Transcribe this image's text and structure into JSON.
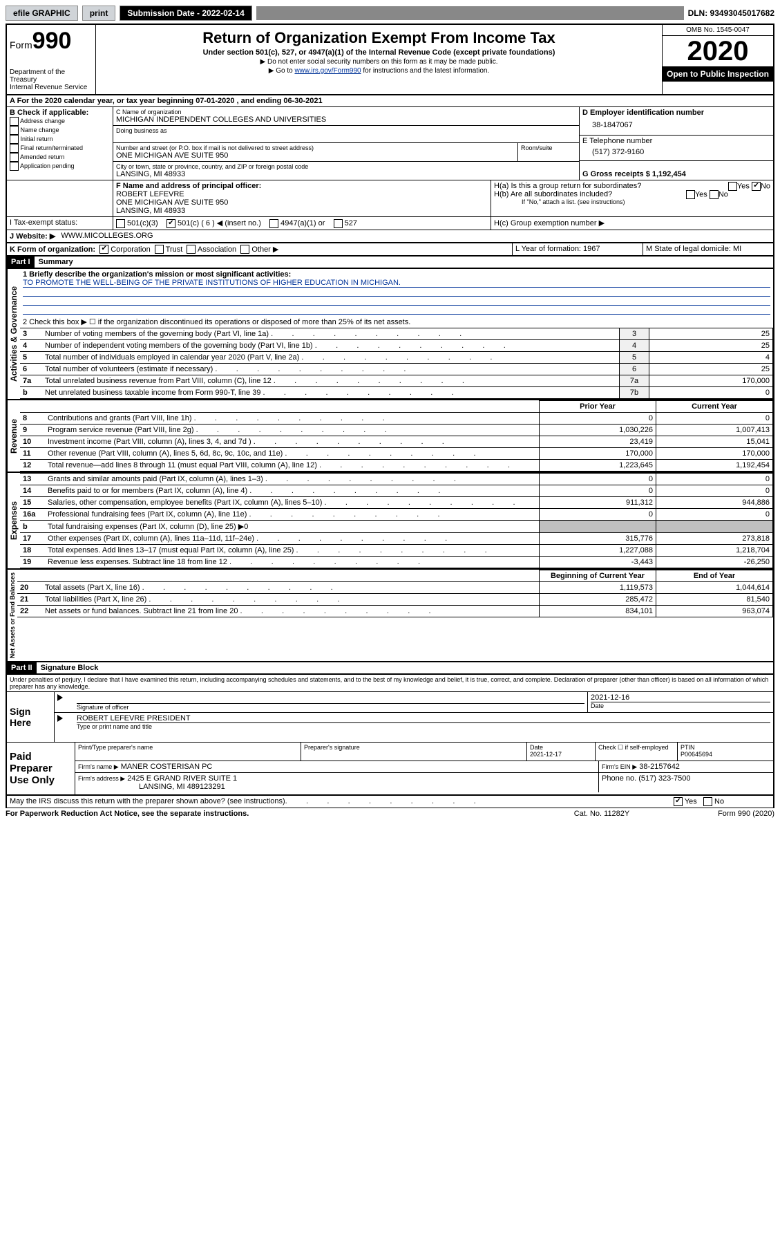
{
  "topbar": {
    "efile": "efile GRAPHIC",
    "print": "print",
    "subdate_label": "Submission Date - 2022-02-14",
    "dln": "DLN: 93493045017682"
  },
  "header": {
    "form_word": "Form",
    "form_num": "990",
    "dept": "Department of the Treasury\nInternal Revenue Service",
    "title": "Return of Organization Exempt From Income Tax",
    "sub": "Under section 501(c), 527, or 4947(a)(1) of the Internal Revenue Code (except private foundations)",
    "note1": "▶ Do not enter social security numbers on this form as it may be made public.",
    "note2_pre": "▶ Go to ",
    "note2_link": "www.irs.gov/Form990",
    "note2_post": " for instructions and the latest information.",
    "omb": "OMB No. 1545-0047",
    "year": "2020",
    "open": "Open to Public Inspection"
  },
  "period": {
    "text": "A For the 2020 calendar year, or tax year beginning 07-01-2020      , and ending 06-30-2021"
  },
  "boxB": {
    "label": "B Check if applicable:",
    "items": [
      "Address change",
      "Name change",
      "Initial return",
      "Final return/terminated",
      "Amended return",
      "Application pending"
    ]
  },
  "boxC": {
    "name_label": "C Name of organization",
    "name": "MICHIGAN INDEPENDENT COLLEGES AND UNIVERSITIES",
    "dba": "Doing business as",
    "street_label": "Number and street (or P.O. box if mail is not delivered to street address)",
    "room": "Room/suite",
    "street": "ONE MICHIGAN AVE SUITE 950",
    "city_label": "City or town, state or province, country, and ZIP or foreign postal code",
    "city": "LANSING, MI  48933"
  },
  "boxD": {
    "label": "D Employer identification number",
    "value": "38-1847067"
  },
  "boxE": {
    "label": "E Telephone number",
    "value": "(517) 372-9160"
  },
  "boxG": {
    "label": "G Gross receipts $ 1,192,454"
  },
  "boxF": {
    "label": "F Name and address of principal officer:",
    "name": "ROBERT LEFEVRE",
    "addr1": "ONE MICHIGAN AVE SUITE 950",
    "addr2": "LANSING, MI  48933"
  },
  "boxH": {
    "a": "H(a)  Is this a group return for subordinates?",
    "b": "H(b)  Are all subordinates included?",
    "bnote": "If \"No,\" attach a list. (see instructions)",
    "c": "H(c)  Group exemption number ▶"
  },
  "boxI": {
    "label": "I   Tax-exempt status:",
    "opts": [
      "501(c)(3)",
      "501(c) ( 6 ) ◀ (insert no.)",
      "4947(a)(1) or",
      "527"
    ]
  },
  "boxJ": {
    "label": "J    Website: ▶",
    "value": "WWW.MICOLLEGES.ORG"
  },
  "boxK": {
    "label": "K Form of organization:",
    "opts": [
      "Corporation",
      "Trust",
      "Association",
      "Other ▶"
    ]
  },
  "boxL": {
    "label": "L Year of formation: 1967"
  },
  "boxM": {
    "label": "M State of legal domicile: MI"
  },
  "part1": {
    "hdr": "Part I",
    "title": "Summary",
    "line1_label": "1  Briefly describe the organization's mission or most significant activities:",
    "line1_value": "TO PROMOTE THE WELL-BEING OF THE PRIVATE INSTITUTIONS OF HIGHER EDUCATION IN MICHIGAN.",
    "line2": "2   Check this box ▶ ☐  if the organization discontinued its operations or disposed of more than 25% of its net assets.",
    "vert_ag": "Activities & Governance",
    "vert_rev": "Revenue",
    "vert_exp": "Expenses",
    "vert_net": "Net Assets or Fund Balances",
    "rows_ag": [
      {
        "n": "3",
        "t": "Number of voting members of the governing body (Part VI, line 1a)",
        "b": "3",
        "v": "25"
      },
      {
        "n": "4",
        "t": "Number of independent voting members of the governing body (Part VI, line 1b)",
        "b": "4",
        "v": "25"
      },
      {
        "n": "5",
        "t": "Total number of individuals employed in calendar year 2020 (Part V, line 2a)",
        "b": "5",
        "v": "4"
      },
      {
        "n": "6",
        "t": "Total number of volunteers (estimate if necessary)",
        "b": "6",
        "v": "25"
      },
      {
        "n": "7a",
        "t": "Total unrelated business revenue from Part VIII, column (C), line 12",
        "b": "7a",
        "v": "170,000"
      },
      {
        "n": "b",
        "t": "Net unrelated business taxable income from Form 990-T, line 39",
        "b": "7b",
        "v": "0"
      }
    ],
    "col_prior": "Prior Year",
    "col_current": "Current Year",
    "rows_rev": [
      {
        "n": "8",
        "t": "Contributions and grants (Part VIII, line 1h)",
        "p": "0",
        "c": "0"
      },
      {
        "n": "9",
        "t": "Program service revenue (Part VIII, line 2g)",
        "p": "1,030,226",
        "c": "1,007,413"
      },
      {
        "n": "10",
        "t": "Investment income (Part VIII, column (A), lines 3, 4, and 7d )",
        "p": "23,419",
        "c": "15,041"
      },
      {
        "n": "11",
        "t": "Other revenue (Part VIII, column (A), lines 5, 6d, 8c, 9c, 10c, and 11e)",
        "p": "170,000",
        "c": "170,000"
      },
      {
        "n": "12",
        "t": "Total revenue—add lines 8 through 11 (must equal Part VIII, column (A), line 12)",
        "p": "1,223,645",
        "c": "1,192,454"
      }
    ],
    "rows_exp": [
      {
        "n": "13",
        "t": "Grants and similar amounts paid (Part IX, column (A), lines 1–3)",
        "p": "0",
        "c": "0"
      },
      {
        "n": "14",
        "t": "Benefits paid to or for members (Part IX, column (A), line 4)",
        "p": "0",
        "c": "0"
      },
      {
        "n": "15",
        "t": "Salaries, other compensation, employee benefits (Part IX, column (A), lines 5–10)",
        "p": "911,312",
        "c": "944,886"
      },
      {
        "n": "16a",
        "t": "Professional fundraising fees (Part IX, column (A), line 11e)",
        "p": "0",
        "c": "0"
      },
      {
        "n": "b",
        "t": "Total fundraising expenses (Part IX, column (D), line 25) ▶0",
        "p": "",
        "c": "",
        "shade": true
      },
      {
        "n": "17",
        "t": "Other expenses (Part IX, column (A), lines 11a–11d, 11f–24e)",
        "p": "315,776",
        "c": "273,818"
      },
      {
        "n": "18",
        "t": "Total expenses. Add lines 13–17 (must equal Part IX, column (A), line 25)",
        "p": "1,227,088",
        "c": "1,218,704"
      },
      {
        "n": "19",
        "t": "Revenue less expenses. Subtract line 18 from line 12",
        "p": "-3,443",
        "c": "-26,250"
      }
    ],
    "col_begin": "Beginning of Current Year",
    "col_end": "End of Year",
    "rows_net": [
      {
        "n": "20",
        "t": "Total assets (Part X, line 16)",
        "p": "1,119,573",
        "c": "1,044,614"
      },
      {
        "n": "21",
        "t": "Total liabilities (Part X, line 26)",
        "p": "285,472",
        "c": "81,540"
      },
      {
        "n": "22",
        "t": "Net assets or fund balances. Subtract line 21 from line 20",
        "p": "834,101",
        "c": "963,074"
      }
    ]
  },
  "part2": {
    "hdr": "Part II",
    "title": "Signature Block",
    "decl": "Under penalties of perjury, I declare that I have examined this return, including accompanying schedules and statements, and to the best of my knowledge and belief, it is true, correct, and complete. Declaration of preparer (other than officer) is based on all information of which preparer has any knowledge.",
    "sign_here": "Sign Here",
    "sig_officer": "Signature of officer",
    "sig_date": "2021-12-16",
    "date_label": "Date",
    "officer_name": "ROBERT LEFEVRE  PRESIDENT",
    "type_label": "Type or print name and title",
    "paid": "Paid Preparer Use Only",
    "prep_name_label": "Print/Type preparer's name",
    "prep_sig_label": "Preparer's signature",
    "prep_date": "2021-12-17",
    "check_self": "Check ☐  if self-employed",
    "ptin_label": "PTIN",
    "ptin": "P00645694",
    "firm_name_label": "Firm's name     ▶",
    "firm_name": "MANER COSTERISAN PC",
    "firm_ein_label": "Firm's EIN ▶",
    "firm_ein": "38-2157642",
    "firm_addr_label": "Firm's address ▶",
    "firm_addr1": "2425 E GRAND RIVER SUITE 1",
    "firm_addr2": "LANSING, MI  489123291",
    "phone_label": "Phone no. (517) 323-7500",
    "discuss": "May the IRS discuss this return with the preparer shown above? (see instructions)",
    "paperwork": "For Paperwork Reduction Act Notice, see the separate instructions.",
    "cat": "Cat. No. 11282Y",
    "formver": "Form 990 (2020)"
  }
}
